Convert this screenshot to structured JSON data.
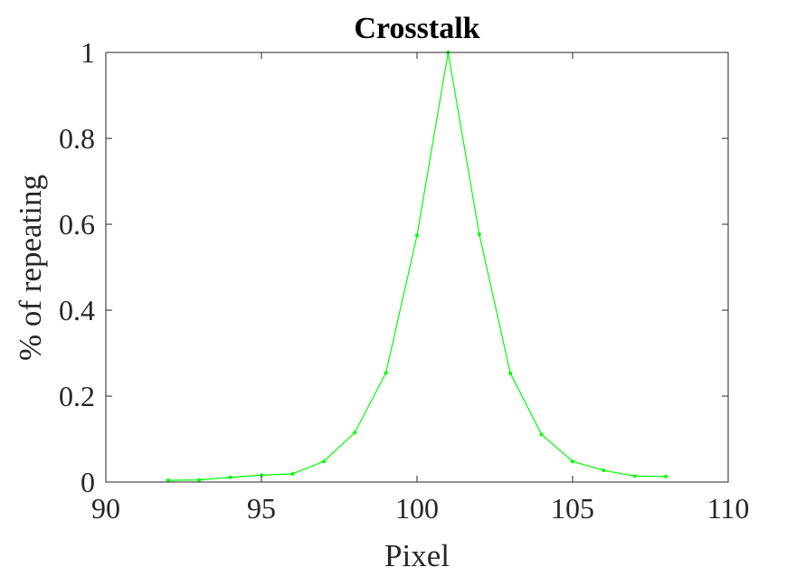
{
  "chart_data": {
    "type": "line",
    "title": "Crosstalk",
    "xlabel": "Pixel",
    "ylabel": "% of repeating",
    "xlim": [
      90,
      110
    ],
    "ylim": [
      0,
      1
    ],
    "xticks": [
      90,
      95,
      100,
      105,
      110
    ],
    "yticks": [
      0,
      0.2,
      0.4,
      0.6,
      0.8,
      1
    ],
    "xtick_labels": [
      "90",
      "95",
      "100",
      "105",
      "110"
    ],
    "ytick_labels": [
      "0",
      "0.2",
      "0.4",
      "0.6",
      "0.8",
      "1"
    ],
    "grid": false,
    "series": [
      {
        "color": "#00ff00",
        "marker": "dot",
        "x": [
          92,
          93,
          94,
          95,
          96,
          97,
          98,
          99,
          100,
          101,
          102,
          103,
          104,
          105,
          106,
          107,
          108
        ],
        "y": [
          0.004,
          0.005,
          0.011,
          0.016,
          0.019,
          0.048,
          0.115,
          0.254,
          0.574,
          1.0,
          0.577,
          0.253,
          0.111,
          0.048,
          0.027,
          0.014,
          0.013
        ]
      }
    ]
  }
}
